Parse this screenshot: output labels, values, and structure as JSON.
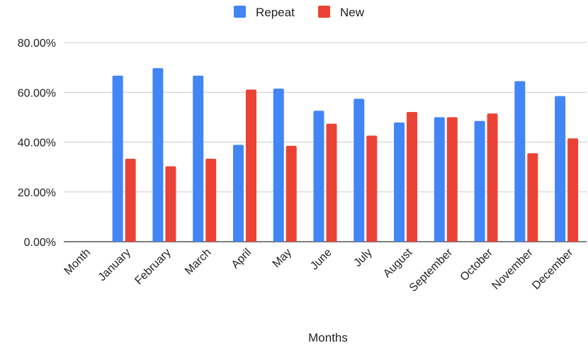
{
  "chart_data": {
    "type": "bar",
    "title": "",
    "xlabel": "Months",
    "ylabel": "",
    "categories": [
      "Month",
      "January",
      "February",
      "March",
      "April",
      "May",
      "June",
      "July",
      "August",
      "September",
      "October",
      "November",
      "December"
    ],
    "series": [
      {
        "name": "Repeat",
        "color": "#4285f4",
        "values": [
          null,
          66.7,
          69.7,
          66.7,
          38.9,
          61.5,
          52.6,
          57.4,
          47.9,
          50.0,
          48.5,
          64.5,
          58.5
        ]
      },
      {
        "name": "New",
        "color": "#ea4335",
        "values": [
          null,
          33.3,
          30.3,
          33.3,
          61.1,
          38.5,
          47.4,
          42.6,
          52.1,
          50.0,
          51.5,
          35.5,
          41.5
        ]
      }
    ],
    "y_ticks": [
      "0.00%",
      "20.00%",
      "40.00%",
      "60.00%",
      "80.00%"
    ],
    "ylim": [
      0,
      80
    ],
    "legend_position": "top-center",
    "grid": true
  }
}
